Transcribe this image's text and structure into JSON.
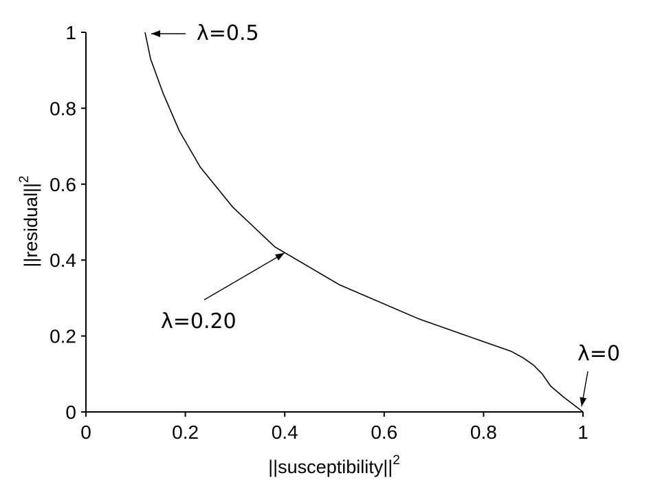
{
  "chart_data": {
    "type": "line",
    "xlabel": "||susceptibility||",
    "xlabel_sup": "2",
    "ylabel": "||residual||",
    "ylabel_sup": "2",
    "xlim": [
      0,
      1
    ],
    "ylim": [
      0,
      1
    ],
    "xticks": [
      0,
      0.2,
      0.4,
      0.6,
      0.8,
      1
    ],
    "xtick_labels": [
      "0",
      "0.2",
      "0.4",
      "0.6",
      "0.8",
      "1"
    ],
    "yticks": [
      0,
      0.2,
      0.4,
      0.6,
      0.8,
      1
    ],
    "ytick_labels": [
      "0",
      "0.2",
      "0.4",
      "0.6",
      "0.8",
      "1"
    ],
    "grid": false,
    "series": [
      {
        "x": [
          0.119,
          0.13,
          0.155,
          0.188,
          0.23,
          0.295,
          0.38,
          0.51,
          0.67,
          0.8,
          0.855,
          0.88,
          0.9,
          0.918,
          0.935,
          0.96,
          1.0
        ],
        "y": [
          1.0,
          0.93,
          0.84,
          0.74,
          0.645,
          0.54,
          0.435,
          0.335,
          0.245,
          0.185,
          0.16,
          0.142,
          0.124,
          0.1,
          0.068,
          0.04,
          0.0
        ]
      }
    ],
    "annotations": [
      {
        "text": "λ=0.5",
        "x": 0.119,
        "y": 1.0
      },
      {
        "text": "λ=0.20",
        "x": 0.38,
        "y": 0.435
      },
      {
        "text": "λ=0",
        "x": 1.0,
        "y": 0.0
      }
    ]
  }
}
